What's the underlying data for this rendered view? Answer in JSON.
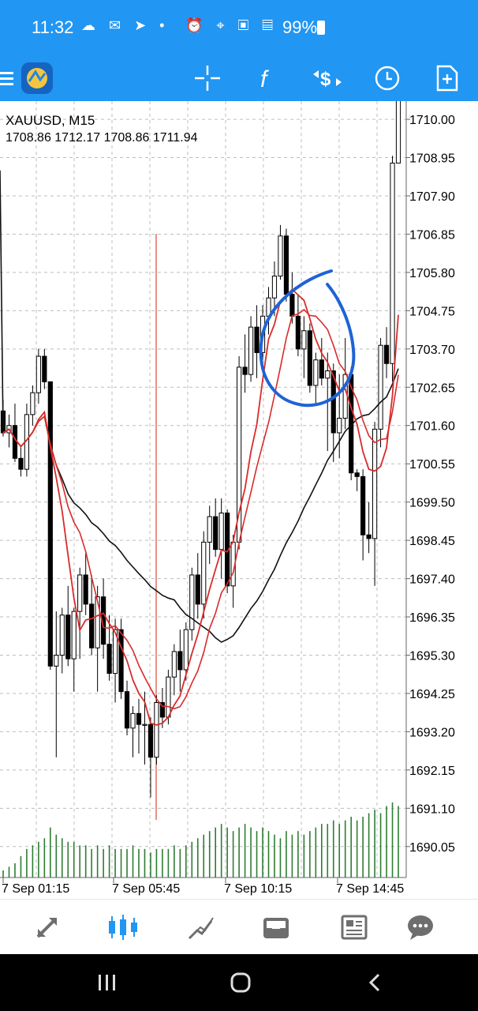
{
  "status_bar": {
    "time": "11:32",
    "battery": "99%",
    "left_icons": [
      "cloud-icon",
      "talk-icon",
      "telegram-icon",
      "dot-icon"
    ],
    "right_icons": [
      "alarm-icon",
      "location-icon",
      "hd-voice-icon",
      "lte-icon",
      "signal-icon",
      "battery-icon"
    ]
  },
  "toolbar": {
    "icons": [
      "menu-icon",
      "app-logo",
      "crosshair-icon",
      "indicator-icon",
      "trade-icon",
      "clock-icon",
      "new-order-icon"
    ]
  },
  "chart_info": {
    "symbol": "XAUUSD, M15",
    "ohlc": "1708.86 1712.17 1708.86 1711.94"
  },
  "colors": {
    "accent": "#2196F3",
    "ma_fast": "#D92B2B",
    "ma_slow": "#111111",
    "volume": "#2E7D32",
    "annotation": "#1E63D6",
    "vertical_line": "#D94A3A",
    "grid": "#BDBDBD"
  },
  "chart_data": {
    "type": "candlestick",
    "symbol": "XAUUSD",
    "timeframe": "M15",
    "y_ticks": [
      "1710.00",
      "1708.95",
      "1707.90",
      "1706.85",
      "1705.80",
      "1704.75",
      "1703.70",
      "1702.65",
      "1701.60",
      "1700.55",
      "1699.50",
      "1698.45",
      "1697.40",
      "1696.35",
      "1695.30",
      "1694.25",
      "1693.20",
      "1692.15",
      "1691.10",
      "1690.05"
    ],
    "x_ticks": [
      "7 Sep 01:15",
      "7 Sep 05:45",
      "7 Sep 10:15",
      "7 Sep 14:45"
    ],
    "ylim": [
      1689.2,
      1710.5
    ],
    "last_close": 1711.94,
    "candles": [
      [
        1702.0,
        1702.3,
        1701.3,
        1701.4
      ],
      [
        1701.4,
        1701.9,
        1701.0,
        1701.6
      ],
      [
        1701.6,
        1702.2,
        1700.6,
        1700.7
      ],
      [
        1700.7,
        1701.0,
        1700.2,
        1700.4
      ],
      [
        1700.4,
        1702.2,
        1700.2,
        1701.9
      ],
      [
        1701.9,
        1702.7,
        1701.6,
        1702.5
      ],
      [
        1702.5,
        1703.7,
        1702.2,
        1703.5
      ],
      [
        1703.5,
        1703.7,
        1702.6,
        1702.8
      ],
      [
        1702.8,
        1702.8,
        1694.9,
        1695.0
      ],
      [
        1695.0,
        1696.5,
        1692.5,
        1695.3
      ],
      [
        1695.3,
        1696.6,
        1694.8,
        1696.4
      ],
      [
        1696.4,
        1697.2,
        1695.0,
        1695.2
      ],
      [
        1695.2,
        1696.6,
        1694.3,
        1696.5
      ],
      [
        1696.5,
        1697.7,
        1695.2,
        1697.5
      ],
      [
        1697.5,
        1698.1,
        1696.4,
        1696.7
      ],
      [
        1696.7,
        1697.5,
        1695.3,
        1695.5
      ],
      [
        1695.5,
        1697.2,
        1694.3,
        1696.9
      ],
      [
        1696.9,
        1697.4,
        1695.2,
        1695.6
      ],
      [
        1695.6,
        1696.4,
        1694.6,
        1694.8
      ],
      [
        1694.8,
        1696.3,
        1694.0,
        1696.0
      ],
      [
        1696.0,
        1696.3,
        1694.1,
        1694.3
      ],
      [
        1694.3,
        1694.6,
        1693.1,
        1693.3
      ],
      [
        1693.3,
        1693.9,
        1692.5,
        1693.7
      ],
      [
        1693.7,
        1694.1,
        1692.6,
        1693.4
      ],
      [
        1693.4,
        1694.3,
        1692.3,
        1693.4
      ],
      [
        1693.4,
        1693.6,
        1691.4,
        1692.5
      ],
      [
        1692.5,
        1694.2,
        1692.3,
        1694.0
      ],
      [
        1694.0,
        1694.4,
        1693.3,
        1693.6
      ],
      [
        1693.6,
        1694.9,
        1693.4,
        1694.7
      ],
      [
        1694.7,
        1695.6,
        1694.2,
        1695.4
      ],
      [
        1695.4,
        1696.0,
        1694.3,
        1694.9
      ],
      [
        1694.9,
        1696.2,
        1694.6,
        1696.0
      ],
      [
        1696.0,
        1697.7,
        1695.7,
        1697.5
      ],
      [
        1697.5,
        1698.1,
        1696.3,
        1696.7
      ],
      [
        1696.7,
        1698.7,
        1696.3,
        1698.4
      ],
      [
        1698.4,
        1699.4,
        1697.8,
        1699.1
      ],
      [
        1699.1,
        1699.6,
        1698.0,
        1698.2
      ],
      [
        1698.2,
        1699.6,
        1697.4,
        1699.2
      ],
      [
        1699.2,
        1699.3,
        1697.0,
        1697.2
      ],
      [
        1697.2,
        1698.6,
        1696.6,
        1698.4
      ],
      [
        1698.4,
        1703.5,
        1698.2,
        1703.2
      ],
      [
        1703.2,
        1704.1,
        1702.5,
        1703.0
      ],
      [
        1703.0,
        1704.6,
        1702.8,
        1704.3
      ],
      [
        1704.3,
        1704.9,
        1702.9,
        1703.6
      ],
      [
        1703.6,
        1704.9,
        1703.4,
        1704.6
      ],
      [
        1704.6,
        1705.4,
        1704.1,
        1705.1
      ],
      [
        1705.1,
        1706.1,
        1704.6,
        1705.7
      ],
      [
        1705.7,
        1707.1,
        1705.6,
        1706.8
      ],
      [
        1706.8,
        1707.0,
        1705.0,
        1705.2
      ],
      [
        1705.2,
        1705.8,
        1704.4,
        1704.6
      ],
      [
        1704.6,
        1705.2,
        1703.5,
        1703.7
      ],
      [
        1703.7,
        1704.6,
        1702.9,
        1704.2
      ],
      [
        1704.2,
        1704.4,
        1702.5,
        1702.7
      ],
      [
        1702.7,
        1703.6,
        1702.2,
        1703.4
      ],
      [
        1703.4,
        1704.0,
        1702.7,
        1702.9
      ],
      [
        1702.9,
        1703.6,
        1700.9,
        1703.1
      ],
      [
        1703.1,
        1703.3,
        1700.6,
        1701.4
      ],
      [
        1701.4,
        1703.0,
        1700.7,
        1701.8
      ],
      [
        1701.8,
        1704.0,
        1701.5,
        1703.0
      ],
      [
        1703.0,
        1703.2,
        1700.1,
        1700.3
      ],
      [
        1700.3,
        1700.4,
        1699.8,
        1700.2
      ],
      [
        1700.2,
        1700.4,
        1697.9,
        1698.6
      ],
      [
        1698.6,
        1699.5,
        1698.1,
        1698.5
      ],
      [
        1698.5,
        1701.7,
        1697.2,
        1701.5
      ],
      [
        1701.5,
        1704.0,
        1701.0,
        1703.8
      ],
      [
        1703.8,
        1704.3,
        1702.9,
        1703.3
      ],
      [
        1703.3,
        1709.0,
        1702.8,
        1708.8
      ],
      [
        1708.8,
        1712.2,
        1708.8,
        1711.9
      ]
    ],
    "volumes": [
      2,
      3,
      4,
      6,
      8,
      9,
      10,
      11,
      14,
      12,
      11,
      10,
      10,
      9,
      9,
      8,
      9,
      8,
      9,
      8,
      8,
      8,
      9,
      8,
      8,
      7,
      8,
      8,
      8,
      9,
      8,
      9,
      10,
      11,
      12,
      13,
      14,
      15,
      14,
      13,
      14,
      15,
      14,
      13,
      14,
      13,
      12,
      11,
      13,
      12,
      13,
      12,
      13,
      14,
      15,
      15,
      16,
      15,
      16,
      17,
      16,
      17,
      18,
      19,
      18,
      20,
      21,
      20
    ],
    "ma_fast_label": "",
    "ma_slow_label": ""
  },
  "bottom_nav": {
    "items": [
      "quotes-icon",
      "chart-icon",
      "trade-icon",
      "history-icon",
      "news-icon",
      "chat-icon"
    ],
    "active": "chart-icon"
  },
  "system_nav": {
    "items": [
      "recent-apps-icon",
      "home-icon",
      "back-icon"
    ]
  }
}
